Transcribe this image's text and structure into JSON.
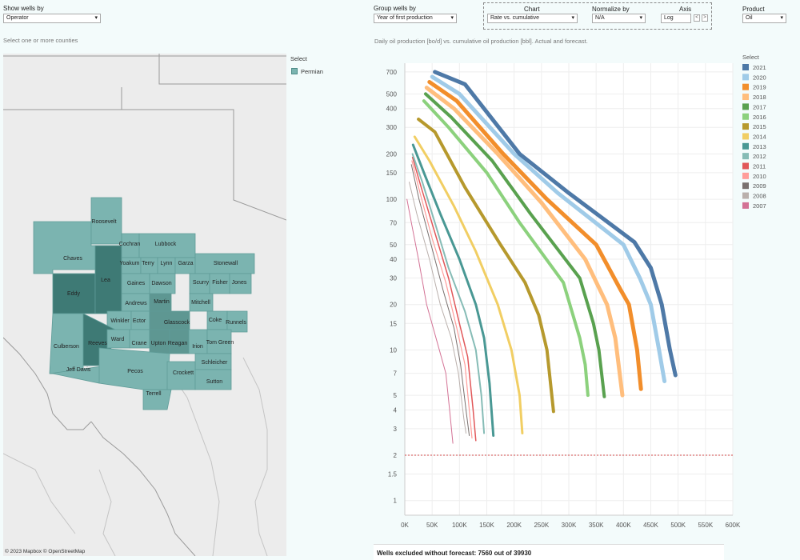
{
  "controls": {
    "show_wells_by": {
      "label": "Show wells by",
      "value": "Operator"
    },
    "group_wells_by": {
      "label": "Group wells by",
      "value": "Year of first production"
    },
    "chart": {
      "label": "Chart",
      "value": "Rate vs. cumulative"
    },
    "normalize_by": {
      "label": "Normalize by",
      "value": "N/A"
    },
    "axis": {
      "label": "Axis",
      "value": "Log"
    },
    "product": {
      "label": "Product",
      "value": "Oil"
    }
  },
  "map": {
    "hint": "Select one or more counties",
    "legend_title": "Select",
    "legend_item": "Permian",
    "attribution": "© 2023 Mapbox  © OpenStreetMap",
    "counties": [
      "Roosevelt",
      "Chaves",
      "Lea",
      "Eddy",
      "Cochran",
      "Lubbock",
      "Yoakum",
      "Terry",
      "Lynn",
      "Garza",
      "Stonewall",
      "Gaines",
      "Dawson",
      "Scurry",
      "Fisher",
      "Jones",
      "Andrews",
      "Martin",
      "Mitchell",
      "Winkler",
      "Ector",
      "Glasscock",
      "Coke",
      "Runnels",
      "Culberson",
      "Reeves",
      "Ward",
      "Crane",
      "Upton",
      "Reagan",
      "Irion",
      "Tom Green",
      "Jeff Davis",
      "Pecos",
      "Schleicher",
      "Crockett",
      "Sutton",
      "Terrell"
    ]
  },
  "chart_title": "Daily oil production [bo/d] vs. cumulative oil production [bbl]. Actual and forecast.",
  "footer": "Wells excluded without forecast: 7560 out of 39930",
  "chart_data": {
    "type": "line",
    "x_scale": "linear",
    "y_scale": "log",
    "xlim": [
      0,
      600000
    ],
    "ylim": [
      0.8,
      800
    ],
    "x_ticks": [
      "0K",
      "50K",
      "100K",
      "150K",
      "200K",
      "250K",
      "300K",
      "350K",
      "400K",
      "450K",
      "500K",
      "550K",
      "600K"
    ],
    "y_ticks": [
      1,
      1.5,
      2,
      3,
      4,
      5,
      7,
      10,
      15,
      20,
      30,
      40,
      50,
      70,
      100,
      150,
      200,
      300,
      400,
      500,
      700
    ],
    "reference_line": 2,
    "legend_title": "Select",
    "legend_position": "right",
    "series": [
      {
        "name": "2021",
        "color": "#4e79a7",
        "points": [
          [
            55000,
            700
          ],
          [
            110000,
            580
          ],
          [
            210000,
            200
          ],
          [
            300000,
            110
          ],
          [
            420000,
            52
          ],
          [
            450000,
            35
          ],
          [
            470000,
            20
          ],
          [
            485000,
            10
          ],
          [
            495000,
            6.8
          ]
        ]
      },
      {
        "name": "2020",
        "color": "#a0cbe8",
        "points": [
          [
            50000,
            650
          ],
          [
            100000,
            500
          ],
          [
            200000,
            200
          ],
          [
            280000,
            110
          ],
          [
            400000,
            50
          ],
          [
            430000,
            30
          ],
          [
            450000,
            20
          ],
          [
            465000,
            10
          ],
          [
            475000,
            6.2
          ]
        ]
      },
      {
        "name": "2019",
        "color": "#f28e2b",
        "points": [
          [
            45000,
            600
          ],
          [
            95000,
            450
          ],
          [
            180000,
            200
          ],
          [
            260000,
            100
          ],
          [
            350000,
            50
          ],
          [
            395000,
            25
          ],
          [
            410000,
            20
          ],
          [
            425000,
            10
          ],
          [
            432000,
            5.5
          ]
        ]
      },
      {
        "name": "2018",
        "color": "#ffbe7d",
        "points": [
          [
            40000,
            550
          ],
          [
            90000,
            400
          ],
          [
            170000,
            200
          ],
          [
            250000,
            95
          ],
          [
            330000,
            40
          ],
          [
            370000,
            20
          ],
          [
            385000,
            12
          ],
          [
            398000,
            5
          ]
        ]
      },
      {
        "name": "2017",
        "color": "#59a14f",
        "points": [
          [
            38000,
            500
          ],
          [
            85000,
            350
          ],
          [
            160000,
            180
          ],
          [
            230000,
            80
          ],
          [
            320000,
            30
          ],
          [
            345000,
            15
          ],
          [
            355000,
            10
          ],
          [
            365000,
            4.9
          ]
        ]
      },
      {
        "name": "2016",
        "color": "#8cd17d",
        "points": [
          [
            35000,
            450
          ],
          [
            80000,
            300
          ],
          [
            150000,
            150
          ],
          [
            210000,
            70
          ],
          [
            290000,
            28
          ],
          [
            320000,
            12
          ],
          [
            330000,
            8
          ],
          [
            335000,
            5
          ]
        ]
      },
      {
        "name": "2015",
        "color": "#b6992d",
        "points": [
          [
            25000,
            340
          ],
          [
            55000,
            280
          ],
          [
            110000,
            120
          ],
          [
            175000,
            50
          ],
          [
            220000,
            28
          ],
          [
            245000,
            17
          ],
          [
            260000,
            10
          ],
          [
            272000,
            3.9
          ]
        ]
      },
      {
        "name": "2014",
        "color": "#f1ce63",
        "points": [
          [
            18000,
            260
          ],
          [
            45000,
            180
          ],
          [
            90000,
            90
          ],
          [
            130000,
            45
          ],
          [
            170000,
            20
          ],
          [
            195000,
            10
          ],
          [
            210000,
            5
          ],
          [
            215000,
            2.8
          ]
        ]
      },
      {
        "name": "2013",
        "color": "#499894",
        "points": [
          [
            15000,
            230
          ],
          [
            35000,
            150
          ],
          [
            65000,
            80
          ],
          [
            100000,
            40
          ],
          [
            130000,
            20
          ],
          [
            145000,
            12
          ],
          [
            155000,
            6
          ],
          [
            162000,
            2.7
          ]
        ]
      },
      {
        "name": "2012",
        "color": "#86bcb6",
        "points": [
          [
            14000,
            200
          ],
          [
            32000,
            130
          ],
          [
            55000,
            70
          ],
          [
            80000,
            35
          ],
          [
            110000,
            18
          ],
          [
            130000,
            10
          ],
          [
            140000,
            5
          ],
          [
            145000,
            2.8
          ]
        ]
      },
      {
        "name": "2011",
        "color": "#e15759",
        "points": [
          [
            14000,
            190
          ],
          [
            30000,
            120
          ],
          [
            55000,
            60
          ],
          [
            80000,
            30
          ],
          [
            100000,
            15
          ],
          [
            115000,
            9
          ],
          [
            125000,
            4
          ],
          [
            130000,
            2.5
          ]
        ]
      },
      {
        "name": "2010",
        "color": "#ff9d9a",
        "points": [
          [
            13000,
            180
          ],
          [
            28000,
            110
          ],
          [
            50000,
            55
          ],
          [
            75000,
            28
          ],
          [
            95000,
            14
          ],
          [
            110000,
            8
          ],
          [
            118000,
            4
          ],
          [
            123000,
            2.6
          ]
        ]
      },
      {
        "name": "2009",
        "color": "#79706e",
        "points": [
          [
            12000,
            170
          ],
          [
            26000,
            100
          ],
          [
            48000,
            50
          ],
          [
            70000,
            25
          ],
          [
            90000,
            14
          ],
          [
            102000,
            8
          ],
          [
            112000,
            4
          ],
          [
            118000,
            2.7
          ]
        ]
      },
      {
        "name": "2008",
        "color": "#bab0ac",
        "points": [
          [
            8000,
            130
          ],
          [
            22000,
            80
          ],
          [
            45000,
            40
          ],
          [
            65000,
            20
          ],
          [
            85000,
            12
          ],
          [
            98000,
            7
          ],
          [
            108000,
            3.5
          ],
          [
            112000,
            2.8
          ]
        ]
      },
      {
        "name": "2007",
        "color": "#d37295",
        "points": [
          [
            4000,
            100
          ],
          [
            12000,
            70
          ],
          [
            25000,
            40
          ],
          [
            40000,
            20
          ],
          [
            60000,
            11
          ],
          [
            75000,
            7
          ],
          [
            82000,
            4
          ],
          [
            88000,
            2.4
          ]
        ]
      }
    ]
  }
}
